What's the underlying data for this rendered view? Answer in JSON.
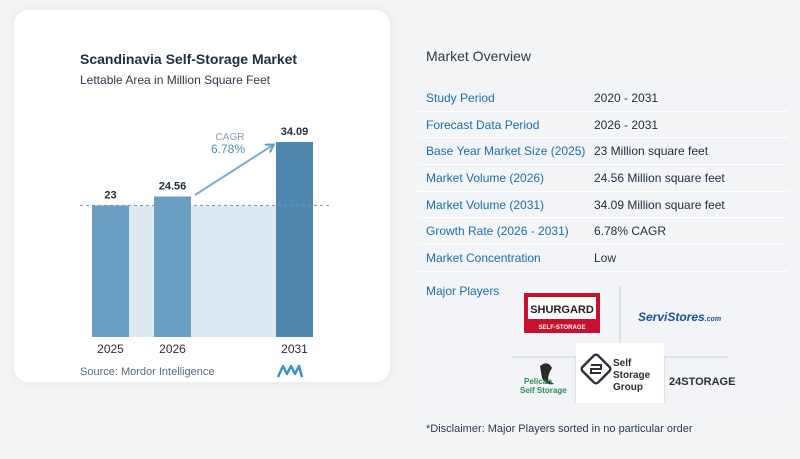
{
  "chart_data": {
    "type": "bar",
    "title": "Scandinavia Self-Storage Market",
    "subtitle": "Lettable Area in Million Square Feet",
    "categories": [
      "2025",
      "2026",
      "2031"
    ],
    "values": [
      23,
      24.56,
      34.09
    ],
    "value_labels": [
      "23",
      "24.56",
      "34.09"
    ],
    "ylim": [
      0,
      34.09
    ],
    "reference_line_value": 23,
    "annotation": {
      "label": "CAGR",
      "value": "6.78%"
    },
    "colors": {
      "bar": "#6b9fc2",
      "bar_dark": "#4f86ad",
      "band": "#dde8f1",
      "accent": "#5aa0c8"
    },
    "source": "Source:  Mordor Intelligence"
  },
  "overview": {
    "title": "Market Overview",
    "rows": [
      {
        "label": "Study Period",
        "value": "2020 - 2031"
      },
      {
        "label": "Forecast Data Period",
        "value": "2026 - 2031"
      },
      {
        "label": "Base Year Market Size (2025)",
        "value": "23 Million square feet"
      },
      {
        "label": "Market Volume (2026)",
        "value": "24.56 Million square feet"
      },
      {
        "label": "Market Volume (2031)",
        "value": "34.09 Million square feet"
      },
      {
        "label": "Growth Rate (2026 - 2031)",
        "value": "6.78% CAGR"
      },
      {
        "label": "Market Concentration",
        "value": "Low"
      }
    ],
    "players_label": "Major Players",
    "players": {
      "shurgard_main": "SHURGARD",
      "shurgard_sub": "SELF-STORAGE",
      "servistores": "ServiStores",
      "servistores_suffix": ".com",
      "pelican_line1": "Pelican",
      "pelican_line2": "Self Storage",
      "ssg_line1": "Self",
      "ssg_line2": "Storage",
      "ssg_line3": "Group",
      "storage24": "24STORAGE"
    },
    "disclaimer": "*Disclaimer: Major Players sorted in no particular order"
  }
}
